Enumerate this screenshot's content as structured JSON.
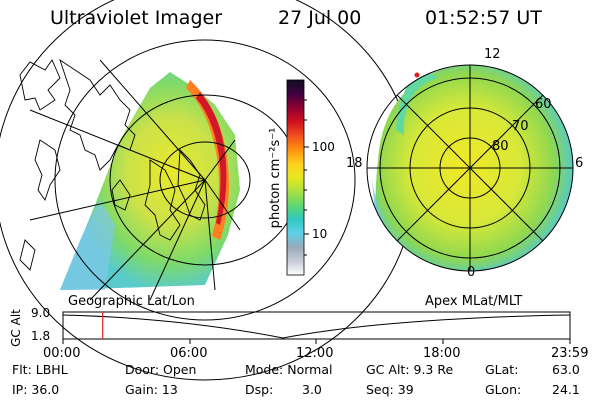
{
  "header": {
    "instrument": "Ultraviolet Imager",
    "date": "27 Jul 00",
    "time": "01:52:57 UT"
  },
  "left_panel": {
    "caption": "Geographic Lat/Lon"
  },
  "right_panel": {
    "caption": "Apex MLat/MLT",
    "mlt_labels": [
      "12",
      "18",
      "6",
      "0"
    ],
    "lat_labels": [
      "60",
      "70",
      "80"
    ]
  },
  "colorbar": {
    "unit_label": "photon cm⁻²s⁻¹",
    "ticks": [
      "100",
      "10"
    ],
    "colors": [
      "#ffffff",
      "#c8ccd8",
      "#9aa9b8",
      "#5fd0e8",
      "#30c8c0",
      "#60d870",
      "#a8e040",
      "#e8e820",
      "#ffd020",
      "#ff9010",
      "#f05020",
      "#d01020",
      "#900030",
      "#400040",
      "#101020"
    ]
  },
  "timeline": {
    "axis_label": "GC Alt",
    "y_ticks": [
      "9.0",
      "1.8"
    ],
    "x_ticks": [
      "00:00",
      "06:00",
      "12:00",
      "18:00",
      "23:59"
    ],
    "marker_time_hours": 1.88
  },
  "footer": {
    "flt_label": "Flt: LBHL",
    "ip_label": "IP: 36.0",
    "door_label": "Door: Open",
    "gain_label": "Gain: 13",
    "mode_label": "Mode: Normal",
    "dsp_label": "Dsp:",
    "dsp_value": "3.0",
    "gcalt_label": "GC Alt: 9.3 Re",
    "seq_label": "Seq: 39",
    "glat_label": "GLat:",
    "glat_value": "63.0",
    "glon_label": "GLon:",
    "glon_value": "24.1"
  }
}
